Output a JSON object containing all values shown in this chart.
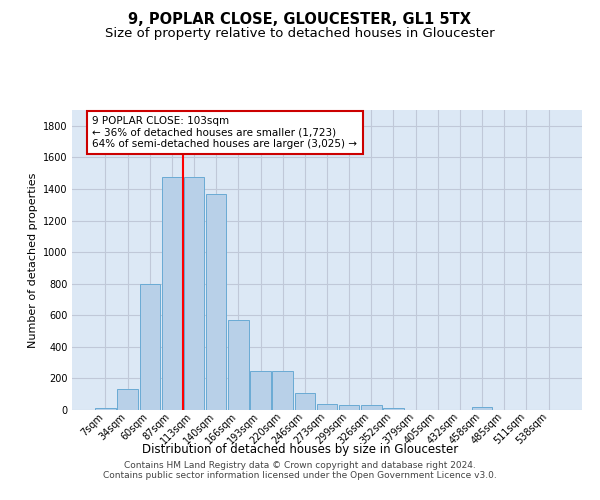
{
  "title": "9, POPLAR CLOSE, GLOUCESTER, GL1 5TX",
  "subtitle": "Size of property relative to detached houses in Gloucester",
  "xlabel": "Distribution of detached houses by size in Gloucester",
  "ylabel": "Number of detached properties",
  "footer_line1": "Contains HM Land Registry data © Crown copyright and database right 2024.",
  "footer_line2": "Contains public sector information licensed under the Open Government Licence v3.0.",
  "bar_labels": [
    "7sqm",
    "34sqm",
    "60sqm",
    "87sqm",
    "113sqm",
    "140sqm",
    "166sqm",
    "193sqm",
    "220sqm",
    "246sqm",
    "273sqm",
    "299sqm",
    "326sqm",
    "352sqm",
    "379sqm",
    "405sqm",
    "432sqm",
    "458sqm",
    "485sqm",
    "511sqm",
    "538sqm"
  ],
  "bar_values": [
    15,
    130,
    795,
    1475,
    1475,
    1370,
    570,
    250,
    250,
    110,
    35,
    30,
    30,
    15,
    0,
    0,
    0,
    20,
    0,
    0,
    0
  ],
  "bar_color": "#b8d0e8",
  "bar_edgecolor": "#6aaad4",
  "background_color": "#ffffff",
  "plot_bg_color": "#dce8f5",
  "grid_color": "#c0c8d8",
  "red_line_index": 4,
  "annotation_line1": "9 POPLAR CLOSE: 103sqm",
  "annotation_line2": "← 36% of detached houses are smaller (1,723)",
  "annotation_line3": "64% of semi-detached houses are larger (3,025) →",
  "annotation_box_color": "#ffffff",
  "annotation_box_edgecolor": "#cc0000",
  "ylim": [
    0,
    1900
  ],
  "yticks": [
    0,
    200,
    400,
    600,
    800,
    1000,
    1200,
    1400,
    1600,
    1800
  ],
  "title_fontsize": 10.5,
  "subtitle_fontsize": 9.5,
  "xlabel_fontsize": 8.5,
  "ylabel_fontsize": 8,
  "tick_fontsize": 7,
  "annotation_fontsize": 7.5,
  "footer_fontsize": 6.5
}
